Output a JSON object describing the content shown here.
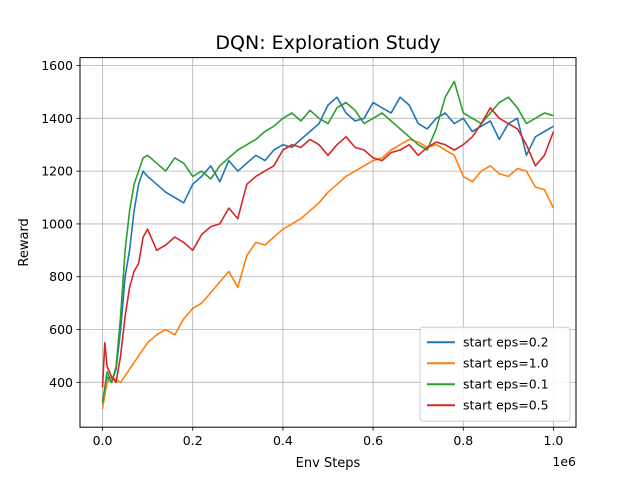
{
  "chart_data": {
    "type": "line",
    "title": "DQN: Exploration Study",
    "xlabel": "Env Steps",
    "ylabel": "Reward",
    "x_offset_label": "1e6",
    "xlim": [
      -0.05,
      1.05
    ],
    "ylim": [
      230,
      1630
    ],
    "xticks": [
      0.0,
      0.2,
      0.4,
      0.6,
      0.8,
      1.0
    ],
    "xtick_labels": [
      "0.0",
      "0.2",
      "0.4",
      "0.6",
      "0.8",
      "1.0"
    ],
    "yticks": [
      400,
      600,
      800,
      1000,
      1200,
      1400,
      1600
    ],
    "ytick_labels": [
      "400",
      "600",
      "800",
      "1000",
      "1200",
      "1400",
      "1600"
    ],
    "grid": true,
    "legend_position": "lower-right",
    "series": [
      {
        "name": "start eps=0.2",
        "color": "#1f77b4",
        "x": [
          0.0,
          0.01,
          0.02,
          0.03,
          0.04,
          0.05,
          0.06,
          0.07,
          0.08,
          0.09,
          0.1,
          0.12,
          0.14,
          0.16,
          0.18,
          0.2,
          0.22,
          0.24,
          0.26,
          0.28,
          0.3,
          0.32,
          0.34,
          0.36,
          0.38,
          0.4,
          0.42,
          0.44,
          0.46,
          0.48,
          0.5,
          0.52,
          0.54,
          0.56,
          0.58,
          0.6,
          0.62,
          0.64,
          0.66,
          0.68,
          0.7,
          0.72,
          0.74,
          0.76,
          0.78,
          0.8,
          0.82,
          0.84,
          0.86,
          0.88,
          0.9,
          0.92,
          0.94,
          0.96,
          0.98,
          1.0
        ],
        "y": [
          330,
          420,
          400,
          450,
          600,
          800,
          900,
          1050,
          1150,
          1200,
          1180,
          1150,
          1120,
          1100,
          1080,
          1150,
          1180,
          1220,
          1160,
          1240,
          1200,
          1230,
          1260,
          1240,
          1280,
          1300,
          1290,
          1320,
          1350,
          1380,
          1450,
          1480,
          1420,
          1390,
          1400,
          1460,
          1440,
          1420,
          1480,
          1450,
          1380,
          1360,
          1400,
          1420,
          1380,
          1400,
          1350,
          1370,
          1390,
          1320,
          1380,
          1400,
          1260,
          1330,
          1350,
          1370
        ]
      },
      {
        "name": "start eps=1.0",
        "color": "#ff7f0e",
        "x": [
          0.0,
          0.01,
          0.02,
          0.03,
          0.04,
          0.06,
          0.08,
          0.1,
          0.12,
          0.14,
          0.16,
          0.18,
          0.2,
          0.22,
          0.24,
          0.26,
          0.28,
          0.3,
          0.32,
          0.34,
          0.36,
          0.38,
          0.4,
          0.42,
          0.44,
          0.46,
          0.48,
          0.5,
          0.52,
          0.54,
          0.56,
          0.58,
          0.6,
          0.62,
          0.64,
          0.66,
          0.68,
          0.7,
          0.72,
          0.74,
          0.76,
          0.78,
          0.8,
          0.82,
          0.84,
          0.86,
          0.88,
          0.9,
          0.92,
          0.94,
          0.96,
          0.98,
          1.0
        ],
        "y": [
          300,
          400,
          420,
          410,
          400,
          450,
          500,
          550,
          580,
          600,
          580,
          640,
          680,
          700,
          740,
          780,
          820,
          760,
          880,
          930,
          920,
          950,
          980,
          1000,
          1020,
          1050,
          1080,
          1120,
          1150,
          1180,
          1200,
          1220,
          1240,
          1250,
          1280,
          1300,
          1320,
          1310,
          1290,
          1300,
          1280,
          1260,
          1180,
          1160,
          1200,
          1220,
          1190,
          1180,
          1210,
          1200,
          1140,
          1130,
          1060
        ]
      },
      {
        "name": "start eps=0.1",
        "color": "#2ca02c",
        "x": [
          0.0,
          0.01,
          0.02,
          0.03,
          0.04,
          0.05,
          0.06,
          0.07,
          0.08,
          0.09,
          0.1,
          0.12,
          0.14,
          0.16,
          0.18,
          0.2,
          0.22,
          0.24,
          0.26,
          0.28,
          0.3,
          0.32,
          0.34,
          0.36,
          0.38,
          0.4,
          0.42,
          0.44,
          0.46,
          0.48,
          0.5,
          0.52,
          0.54,
          0.56,
          0.58,
          0.6,
          0.62,
          0.64,
          0.66,
          0.68,
          0.7,
          0.72,
          0.74,
          0.76,
          0.78,
          0.8,
          0.82,
          0.84,
          0.86,
          0.88,
          0.9,
          0.92,
          0.94,
          0.96,
          0.98,
          1.0
        ],
        "y": [
          320,
          440,
          400,
          460,
          650,
          900,
          1050,
          1150,
          1200,
          1250,
          1260,
          1230,
          1200,
          1250,
          1230,
          1180,
          1200,
          1170,
          1220,
          1250,
          1280,
          1300,
          1320,
          1350,
          1370,
          1400,
          1420,
          1390,
          1430,
          1400,
          1380,
          1440,
          1460,
          1430,
          1380,
          1400,
          1420,
          1390,
          1360,
          1330,
          1300,
          1280,
          1360,
          1480,
          1540,
          1420,
          1400,
          1380,
          1420,
          1460,
          1480,
          1440,
          1380,
          1400,
          1420,
          1410
        ]
      },
      {
        "name": "start eps=0.5",
        "color": "#d62728",
        "x": [
          0.0,
          0.005,
          0.01,
          0.02,
          0.03,
          0.04,
          0.05,
          0.06,
          0.07,
          0.08,
          0.09,
          0.1,
          0.12,
          0.14,
          0.16,
          0.18,
          0.2,
          0.22,
          0.24,
          0.26,
          0.28,
          0.3,
          0.32,
          0.34,
          0.36,
          0.38,
          0.4,
          0.42,
          0.44,
          0.46,
          0.48,
          0.5,
          0.52,
          0.54,
          0.56,
          0.58,
          0.6,
          0.62,
          0.64,
          0.66,
          0.68,
          0.7,
          0.72,
          0.74,
          0.76,
          0.78,
          0.8,
          0.82,
          0.84,
          0.86,
          0.88,
          0.9,
          0.92,
          0.94,
          0.96,
          0.98,
          1.0
        ],
        "y": [
          380,
          550,
          460,
          420,
          400,
          500,
          650,
          760,
          820,
          850,
          950,
          980,
          900,
          920,
          950,
          930,
          900,
          960,
          990,
          1000,
          1060,
          1020,
          1150,
          1180,
          1200,
          1220,
          1280,
          1300,
          1290,
          1320,
          1300,
          1260,
          1300,
          1330,
          1290,
          1280,
          1250,
          1240,
          1270,
          1280,
          1300,
          1260,
          1290,
          1310,
          1300,
          1280,
          1300,
          1330,
          1380,
          1440,
          1400,
          1380,
          1360,
          1300,
          1220,
          1260,
          1350
        ]
      }
    ]
  }
}
